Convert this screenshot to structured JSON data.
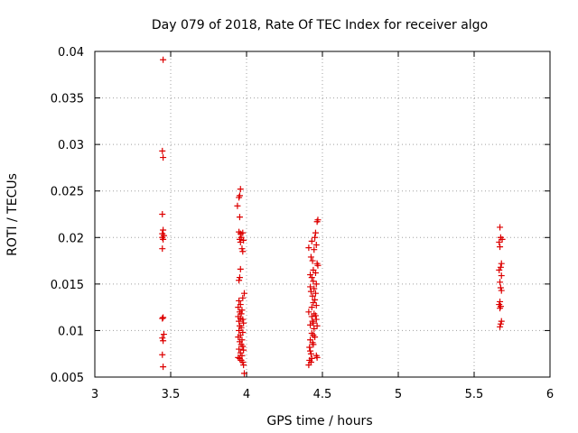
{
  "chart_data": {
    "type": "scatter",
    "title": "Day 079 of 2018, Rate Of TEC Index for receiver algo",
    "xlabel": "GPS time / hours",
    "ylabel": "ROTI / TECUs",
    "xlim": [
      3,
      6
    ],
    "ylim": [
      0.005,
      0.04
    ],
    "xticks": [
      3,
      3.5,
      4,
      4.5,
      5,
      5.5,
      6
    ],
    "xtick_labels": [
      "3",
      "3.5",
      "4",
      "4.5",
      "5",
      "5.5",
      "6"
    ],
    "yticks": [
      0.005,
      0.01,
      0.015,
      0.02,
      0.025,
      0.03,
      0.035,
      0.04
    ],
    "ytick_labels": [
      "0.005",
      "0.01",
      "0.015",
      "0.02",
      "0.025",
      "0.03",
      "0.035",
      "0.04"
    ],
    "grid": true,
    "marker": "+",
    "color": "#dd0000",
    "series": [
      {
        "name": "algo",
        "points": [
          [
            3.45,
            0.0391
          ],
          [
            3.445,
            0.0293
          ],
          [
            3.45,
            0.0286
          ],
          [
            3.445,
            0.0225
          ],
          [
            3.45,
            0.0208
          ],
          [
            3.445,
            0.0204
          ],
          [
            3.455,
            0.0202
          ],
          [
            3.445,
            0.02
          ],
          [
            3.45,
            0.0198
          ],
          [
            3.445,
            0.0188
          ],
          [
            3.45,
            0.0114
          ],
          [
            3.445,
            0.0113
          ],
          [
            3.455,
            0.0096
          ],
          [
            3.445,
            0.0092
          ],
          [
            3.45,
            0.0089
          ],
          [
            3.445,
            0.0074
          ],
          [
            3.45,
            0.0061
          ],
          [
            3.96,
            0.0252
          ],
          [
            3.955,
            0.0245
          ],
          [
            3.95,
            0.0243
          ],
          [
            3.94,
            0.0234
          ],
          [
            3.955,
            0.0222
          ],
          [
            3.95,
            0.0206
          ],
          [
            3.96,
            0.0204
          ],
          [
            3.965,
            0.02
          ],
          [
            3.955,
            0.0198
          ],
          [
            3.96,
            0.0195
          ],
          [
            3.975,
            0.0205
          ],
          [
            3.98,
            0.0197
          ],
          [
            3.97,
            0.0188
          ],
          [
            3.975,
            0.0185
          ],
          [
            3.96,
            0.0166
          ],
          [
            3.955,
            0.0157
          ],
          [
            3.95,
            0.0154
          ],
          [
            3.985,
            0.014
          ],
          [
            3.975,
            0.0135
          ],
          [
            3.95,
            0.0132
          ],
          [
            3.96,
            0.0128
          ],
          [
            3.945,
            0.0125
          ],
          [
            3.97,
            0.0122
          ],
          [
            3.955,
            0.012
          ],
          [
            3.965,
            0.0118
          ],
          [
            3.945,
            0.0115
          ],
          [
            3.96,
            0.0113
          ],
          [
            3.975,
            0.0112
          ],
          [
            3.95,
            0.011
          ],
          [
            3.98,
            0.0108
          ],
          [
            3.955,
            0.0105
          ],
          [
            3.965,
            0.0103
          ],
          [
            3.95,
            0.01
          ],
          [
            3.975,
            0.0098
          ],
          [
            3.96,
            0.0095
          ],
          [
            3.945,
            0.0093
          ],
          [
            3.97,
            0.009
          ],
          [
            3.955,
            0.0088
          ],
          [
            3.965,
            0.0085
          ],
          [
            3.975,
            0.0083
          ],
          [
            3.95,
            0.008
          ],
          [
            3.98,
            0.0079
          ],
          [
            3.96,
            0.0076
          ],
          [
            3.97,
            0.0073
          ],
          [
            3.945,
            0.0071
          ],
          [
            3.955,
            0.007
          ],
          [
            3.965,
            0.0068
          ],
          [
            3.975,
            0.0066
          ],
          [
            3.98,
            0.0063
          ],
          [
            3.985,
            0.0054
          ],
          [
            4.47,
            0.0219
          ],
          [
            4.465,
            0.0217
          ],
          [
            4.455,
            0.0205
          ],
          [
            4.45,
            0.02
          ],
          [
            4.43,
            0.0196
          ],
          [
            4.46,
            0.0192
          ],
          [
            4.41,
            0.0189
          ],
          [
            4.445,
            0.0187
          ],
          [
            4.425,
            0.0179
          ],
          [
            4.435,
            0.0175
          ],
          [
            4.465,
            0.0172
          ],
          [
            4.47,
            0.017
          ],
          [
            4.44,
            0.0165
          ],
          [
            4.455,
            0.0162
          ],
          [
            4.42,
            0.016
          ],
          [
            4.43,
            0.0157
          ],
          [
            4.44,
            0.0153
          ],
          [
            4.46,
            0.015
          ],
          [
            4.42,
            0.0147
          ],
          [
            4.445,
            0.0145
          ],
          [
            4.425,
            0.0142
          ],
          [
            4.455,
            0.014
          ],
          [
            4.435,
            0.0137
          ],
          [
            4.45,
            0.0133
          ],
          [
            4.44,
            0.013
          ],
          [
            4.46,
            0.0127
          ],
          [
            4.43,
            0.0125
          ],
          [
            4.41,
            0.012
          ],
          [
            4.445,
            0.0118
          ],
          [
            4.455,
            0.0116
          ],
          [
            4.43,
            0.0115
          ],
          [
            4.46,
            0.0112
          ],
          [
            4.435,
            0.011
          ],
          [
            4.44,
            0.0108
          ],
          [
            4.42,
            0.0106
          ],
          [
            4.465,
            0.0105
          ],
          [
            4.445,
            0.0102
          ],
          [
            4.43,
            0.0097
          ],
          [
            4.44,
            0.0095
          ],
          [
            4.45,
            0.0093
          ],
          [
            4.42,
            0.009
          ],
          [
            4.435,
            0.0087
          ],
          [
            4.44,
            0.0085
          ],
          [
            4.415,
            0.0082
          ],
          [
            4.42,
            0.0078
          ],
          [
            4.425,
            0.0075
          ],
          [
            4.46,
            0.0073
          ],
          [
            4.465,
            0.0071
          ],
          [
            4.43,
            0.007
          ],
          [
            4.415,
            0.0068
          ],
          [
            4.425,
            0.0066
          ],
          [
            4.41,
            0.0063
          ],
          [
            5.67,
            0.0211
          ],
          [
            5.675,
            0.02
          ],
          [
            5.685,
            0.0198
          ],
          [
            5.665,
            0.0195
          ],
          [
            5.67,
            0.019
          ],
          [
            5.68,
            0.0172
          ],
          [
            5.675,
            0.0168
          ],
          [
            5.665,
            0.0165
          ],
          [
            5.68,
            0.0159
          ],
          [
            5.67,
            0.0152
          ],
          [
            5.675,
            0.0146
          ],
          [
            5.68,
            0.0143
          ],
          [
            5.67,
            0.0131
          ],
          [
            5.665,
            0.0128
          ],
          [
            5.675,
            0.0126
          ],
          [
            5.67,
            0.0124
          ],
          [
            5.68,
            0.011
          ],
          [
            5.675,
            0.0107
          ],
          [
            5.67,
            0.0104
          ]
        ]
      }
    ]
  }
}
